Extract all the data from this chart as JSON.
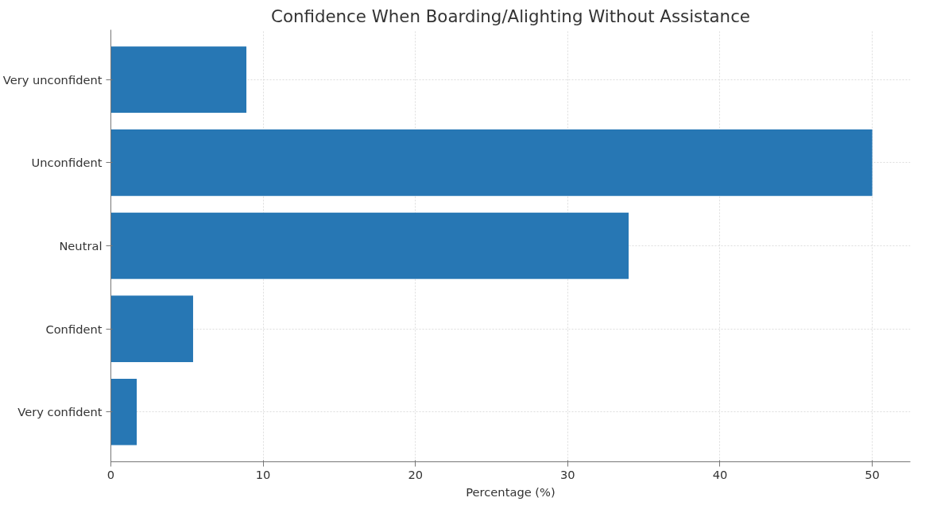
{
  "chart_data": {
    "type": "bar",
    "orientation": "horizontal",
    "title": "Confidence When Boarding/Alighting Without Assistance",
    "xlabel": "Percentage (%)",
    "categories": [
      "Very unconfident",
      "Unconfident",
      "Neutral",
      "Confident",
      "Very confident"
    ],
    "values": [
      8.9,
      50,
      34,
      5.4,
      1.7
    ],
    "color": "#2777b4",
    "xlim": [
      0,
      52.5
    ],
    "xticks": [
      0,
      10,
      20,
      30,
      40,
      50
    ],
    "grid": true
  }
}
